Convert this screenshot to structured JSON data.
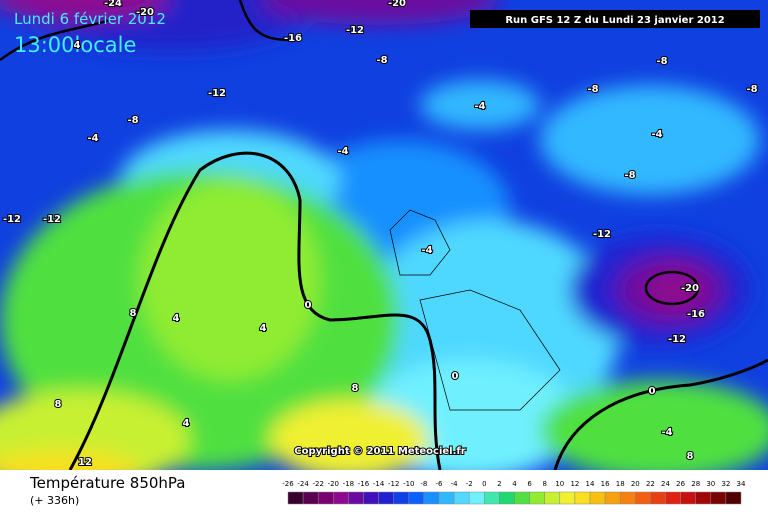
{
  "header": {
    "date": "Lundi 6 février 2012",
    "time": "13:00locale",
    "run": "Run GFS 12 Z du Lundi 23 janvier 2012"
  },
  "map": {
    "contour_labels": [
      -24,
      -20,
      -20,
      -16,
      -12,
      4,
      -12,
      -8,
      -8,
      -4,
      -4,
      -4,
      -8,
      -8,
      -8,
      -4,
      -8,
      -12,
      -12,
      -12,
      -4,
      -20,
      -16,
      -12,
      0,
      4,
      4,
      8,
      8,
      8,
      4,
      0,
      0,
      -4,
      8,
      12
    ],
    "copyright": "Copyright © 2011 Meteociel.fr"
  },
  "footer": {
    "title": "Température 850hPa",
    "subtitle": "(+ 336h)"
  },
  "legend": {
    "ticks": [
      -26,
      -24,
      -22,
      -20,
      -18,
      -16,
      -14,
      -12,
      -10,
      -8,
      -6,
      -4,
      -2,
      0,
      2,
      4,
      6,
      8,
      10,
      12,
      14,
      16,
      18,
      20,
      22,
      24,
      26,
      28,
      30,
      32,
      34
    ],
    "colors": [
      "#3a0030",
      "#5a0050",
      "#7a0070",
      "#8e0a8e",
      "#6a0aa0",
      "#4010b8",
      "#2020d0",
      "#1040e8",
      "#0a60ff",
      "#1890ff",
      "#30b8ff",
      "#50d8ff",
      "#70f0ff",
      "#40e8b0",
      "#20d870",
      "#50e040",
      "#90ec30",
      "#c8f030",
      "#f0f030",
      "#f8e020",
      "#f8c010",
      "#f8a010",
      "#f88010",
      "#f06010",
      "#e84010",
      "#e02010",
      "#c81010",
      "#a00808",
      "#780404",
      "#500000"
    ]
  }
}
